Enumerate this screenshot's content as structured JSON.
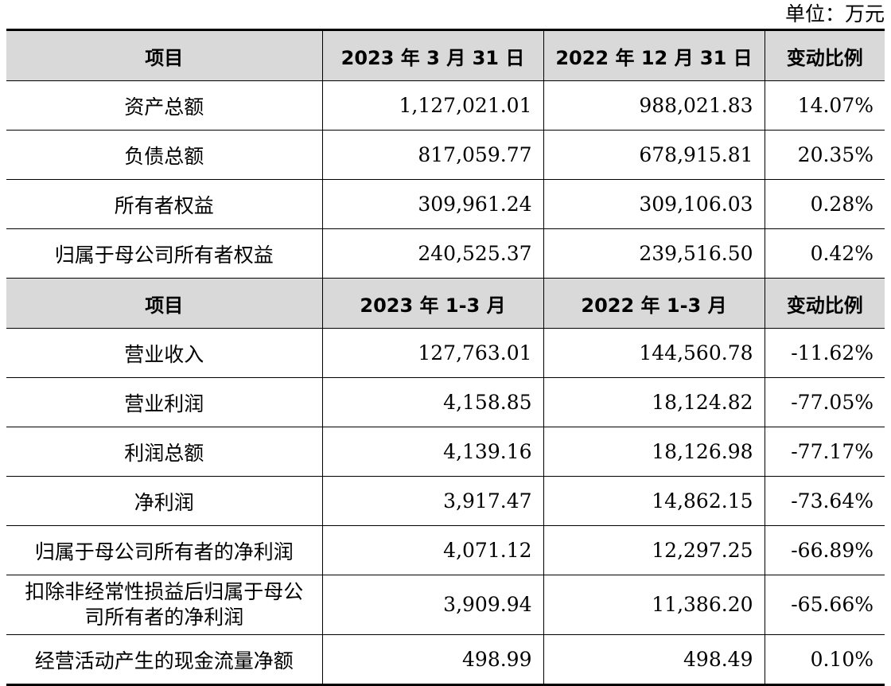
{
  "unit_label": "单位：万元",
  "header1": [
    "项目",
    "2023 年 3 月 31 日",
    "2022 年 12 月 31 日",
    "变动比例"
  ],
  "balance_rows": [
    {
      "item": "资产总额",
      "current": "1,127,021.01",
      "prior": "988,021.83",
      "change": "14.07%"
    },
    {
      "item": "负债总额",
      "current": "817,059.77",
      "prior": "678,915.81",
      "change": "20.35%"
    },
    {
      "item": "所有者权益",
      "current": "309,961.24",
      "prior": "309,106.03",
      "change": "0.28%"
    },
    {
      "item": "归属于母公司所有者权益",
      "current": "240,525.37",
      "prior": "239,516.50",
      "change": "0.42%"
    }
  ],
  "header2": [
    "项目",
    "2023 年 1-3 月",
    "2022 年 1-3 月",
    "变动比例"
  ],
  "income_rows": [
    {
      "item": "营业收入",
      "current": "127,763.01",
      "prior": "144,560.78",
      "change": "-11.62%"
    },
    {
      "item": "营业利润",
      "current": "4,158.85",
      "prior": "18,124.82",
      "change": "-77.05%"
    },
    {
      "item": "利润总额",
      "current": "4,139.16",
      "prior": "18,126.98",
      "change": "-77.17%"
    },
    {
      "item": "净利润",
      "current": "3,917.47",
      "prior": "14,862.15",
      "change": "-73.64%"
    },
    {
      "item": "归属于母公司所有者的净利润",
      "current": "4,071.12",
      "prior": "12,297.25",
      "change": "-66.89%"
    },
    {
      "item": "扣除非经常性损益后归属于母公司所有者的净利润",
      "current": "3,909.94",
      "prior": "11,386.20",
      "change": "-65.66%"
    },
    {
      "item": "经营活动产生的现金流量净额",
      "current": "498.99",
      "prior": "498.49",
      "change": "0.10%"
    }
  ]
}
